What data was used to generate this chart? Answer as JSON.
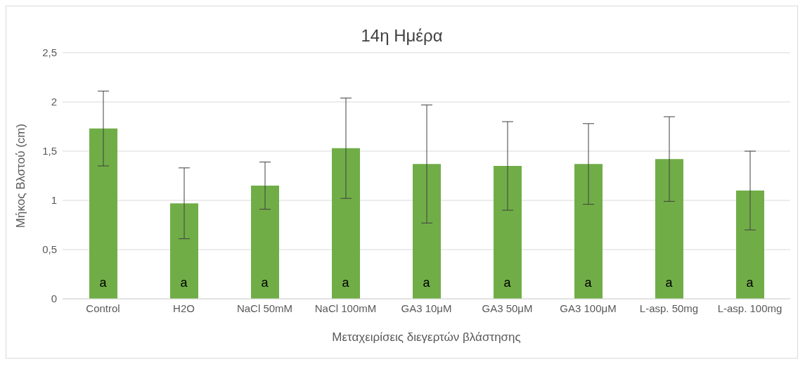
{
  "chart_data": {
    "type": "bar",
    "title": "14η Ημέρα",
    "xlabel": "Μεταχειρίσεις διεγερτών βλάστησης",
    "ylabel": "Μήκος Βλστού  (cm)",
    "categories": [
      "Control",
      "H2O",
      "NaCl 50mM",
      "NaCl 100mM",
      "GA3 10μM",
      "GA3 50μM",
      "GA3 100μM",
      "L-asp. 50mg",
      "L-asp. 100mg"
    ],
    "values": [
      1.73,
      0.97,
      1.15,
      1.53,
      1.37,
      1.35,
      1.37,
      1.42,
      1.1
    ],
    "errors": [
      0.38,
      0.36,
      0.24,
      0.51,
      0.6,
      0.45,
      0.41,
      0.43,
      0.4
    ],
    "color": "#70ad47",
    "ylim": [
      0,
      2.5
    ],
    "yticks": [
      0,
      {
        "value": 0.5,
        "label": "0,5"
      },
      1,
      {
        "value": 1.5,
        "label": "1,5"
      },
      2,
      {
        "value": 2.5,
        "label": "2,5"
      }
    ],
    "grid": "y",
    "annotations": [
      "a",
      "a",
      "a",
      "a",
      "a",
      "a",
      "a",
      "a",
      "a"
    ]
  }
}
